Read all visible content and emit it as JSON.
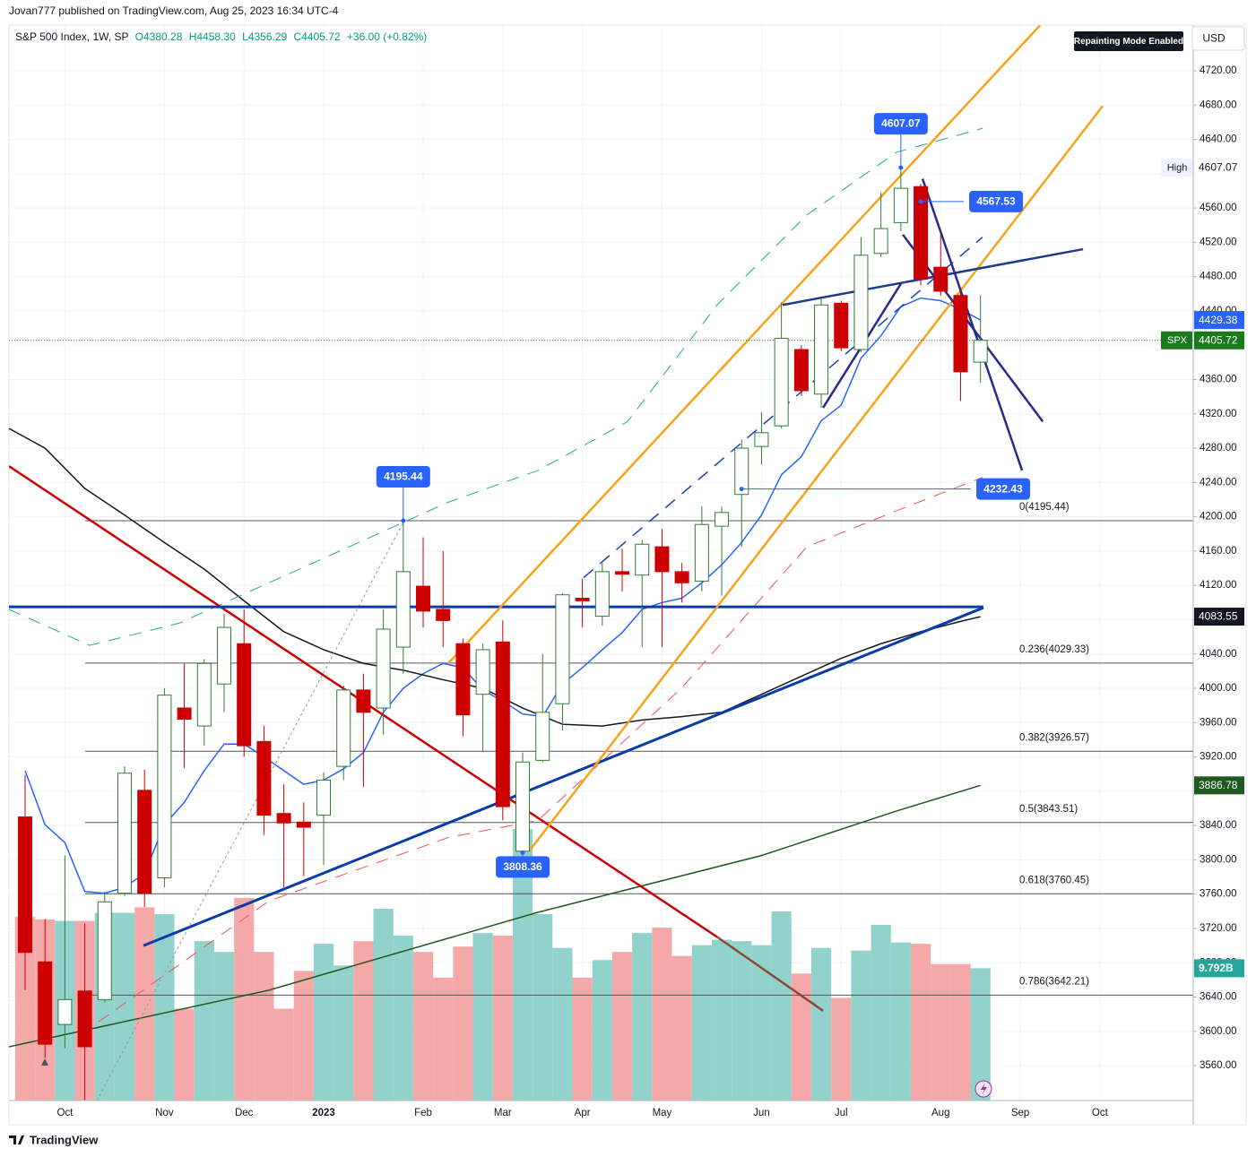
{
  "header": {
    "published": "Jovan777 published on TradingView.com, Aug 25, 2023 16:34 UTC-4",
    "symbol": "S&P 500 Index, 1W, SP",
    "open": "O4380.28",
    "high": "H4458.30",
    "low": "L4356.29",
    "close": "C4405.72",
    "change": "+36.00 (+0.82%)",
    "repainting": "Repainting Mode Enabled",
    "currency": "USD"
  },
  "footer": {
    "brand": "TradingView"
  },
  "chart_data": {
    "type": "candlestick",
    "xlim": [
      -0.81,
      58.69
    ],
    "ylim": [
      3519.3,
      4773.3
    ],
    "yticks": [
      {
        "value": 3560,
        "label": "3560.00"
      },
      {
        "value": 3600,
        "label": "3600.00"
      },
      {
        "value": 3640,
        "label": "3640.00"
      },
      {
        "value": 3680,
        "label": "3680.00"
      },
      {
        "value": 3720,
        "label": "3720.00"
      },
      {
        "value": 3760,
        "label": "3760.00"
      },
      {
        "value": 3800,
        "label": "3800.00"
      },
      {
        "value": 3840,
        "label": "3840.00"
      },
      {
        "value": 3880,
        "label": "3880.00"
      },
      {
        "value": 3920,
        "label": "3920.00"
      },
      {
        "value": 3960,
        "label": "3960.00"
      },
      {
        "value": 4000,
        "label": "4000.00"
      },
      {
        "value": 4040,
        "label": "4040.00"
      },
      {
        "value": 4080,
        "label": "4080.00"
      },
      {
        "value": 4120,
        "label": "4120.00"
      },
      {
        "value": 4160,
        "label": "4160.00"
      },
      {
        "value": 4200,
        "label": "4200.00"
      },
      {
        "value": 4240,
        "label": "4240.00"
      },
      {
        "value": 4280,
        "label": "4280.00"
      },
      {
        "value": 4320,
        "label": "4320.00"
      },
      {
        "value": 4360,
        "label": "4360.00"
      },
      {
        "value": 4400,
        "label": "4400.00"
      },
      {
        "value": 4440,
        "label": "4440.00"
      },
      {
        "value": 4480,
        "label": "4480.00"
      },
      {
        "value": 4520,
        "label": "4520.00"
      },
      {
        "value": 4560,
        "label": "4560.00"
      },
      {
        "value": 4600,
        "label": "4600.00"
      },
      {
        "value": 4640,
        "label": "4640.00"
      },
      {
        "value": 4680,
        "label": "4680.00"
      },
      {
        "value": 4720,
        "label": "4720.00"
      }
    ],
    "xticks": [
      {
        "value": 2,
        "label": "Oct"
      },
      {
        "value": 7,
        "label": "Nov"
      },
      {
        "value": 11,
        "label": "Dec"
      },
      {
        "value": 15,
        "label": "2023"
      },
      {
        "value": 20,
        "label": "Feb"
      },
      {
        "value": 24,
        "label": "Mar"
      },
      {
        "value": 28,
        "label": "Apr"
      },
      {
        "value": 32,
        "label": "May"
      },
      {
        "value": 37,
        "label": "Jun"
      },
      {
        "value": 41,
        "label": "Jul"
      },
      {
        "value": 46,
        "label": "Aug"
      },
      {
        "value": 50,
        "label": "Sep"
      },
      {
        "value": 54,
        "label": "Oct"
      }
    ],
    "grid": true,
    "up_color": "#ffffff",
    "up_stroke": "#2e7d32",
    "down_color": "#cc0000",
    "open": [
      3850,
      3681,
      3608,
      3647,
      3637,
      3761,
      3881,
      3779,
      3977,
      3956,
      4005,
      4052,
      3938,
      3854,
      3844,
      3852,
      3909,
      3998,
      3977,
      4048,
      4119,
      4092,
      4052,
      3993,
      4054,
      3810,
      3916,
      3982,
      4105,
      4084,
      4136,
      4132,
      4165,
      4136,
      4125,
      4189,
      4226,
      4282,
      4306,
      4395,
      4343,
      4449,
      4395,
      4507,
      4543,
      4585,
      4491,
      4458,
      4380.28
    ],
    "high": [
      3899,
      3731,
      3805,
      3726,
      3763,
      3909,
      3905,
      4000,
      4029,
      4034,
      4087,
      4092,
      3956,
      3888,
      3867,
      3902,
      4003,
      4017,
      4092,
      4195.44,
      4176,
      4160,
      4058,
      4052,
      4079,
      3925,
      4040,
      4111,
      4128,
      4146,
      4163,
      4173,
      4186,
      4146,
      4212,
      4212,
      4290,
      4322,
      4450,
      4400,
      4455,
      4452,
      4526,
      4578,
      4607.07,
      4588,
      4529,
      4463,
      4458.3
    ],
    "low": [
      3648,
      3569,
      3580,
      3519,
      3634,
      3758,
      3745,
      3768,
      3907,
      3933,
      3972,
      3920,
      3829,
      3768,
      3781,
      3794,
      3893,
      3885,
      3946,
      4017,
      4071,
      4048,
      3944,
      3927,
      3846,
      3808.36,
      3914,
      3951,
      4071,
      4073,
      4113,
      4048,
      4048,
      4100,
      4113,
      4108,
      4165,
      4261,
      4303,
      4341,
      4327,
      4393,
      4392,
      4503,
      4533,
      4470,
      4458,
      4335,
      4356.29
    ],
    "close": [
      3692,
      3585,
      3637,
      3582,
      3751,
      3901,
      3761,
      3992,
      3964,
      4029,
      4071,
      3933,
      3852,
      3843,
      3838,
      3893,
      3998,
      3972,
      4069,
      4136,
      4090,
      4079,
      3969,
      4045,
      3862,
      3914,
      3972,
      4109,
      4102,
      4136,
      4133,
      4168,
      4136,
      4123,
      4191,
      4205,
      4280,
      4298,
      4408,
      4347,
      4447,
      4397,
      4505,
      4536,
      4583,
      4477,
      4463,
      4369,
      4405.72
    ],
    "volume": {
      "up_color": "#92d2cc",
      "down_color": "#f5a8a8",
      "values": [
        13.6,
        13.4,
        13.3,
        13.3,
        13.9,
        13.9,
        14.3,
        13.8,
        6.8,
        11.8,
        11.0,
        15.0,
        11.0,
        6.8,
        9.6,
        11.6,
        10.0,
        11.8,
        14.2,
        12.2,
        11.0,
        9.1,
        11.4,
        12.4,
        12.2,
        20.1,
        13.8,
        11.3,
        9.1,
        10.4,
        11.0,
        12.4,
        12.8,
        10.7,
        11.5,
        11.9,
        11.8,
        11.5,
        14.0,
        9.4,
        11.3,
        7.6,
        11.1,
        13.0,
        11.7,
        11.6,
        10.1,
        10.1,
        9.792
      ],
      "last_label": "9.792B",
      "tag_color": "#26a69a"
    },
    "fib": {
      "x_start": 3.02,
      "color": "#555555",
      "prices": [
        4195.44,
        4029.33,
        3926.57,
        3843.51,
        3760.45,
        3642.21
      ],
      "labels": [
        "0(4195.44)",
        "0.236(4029.33)",
        "0.382(3926.57)",
        "0.5(3843.51)",
        "0.618(3760.45)",
        "0.786(3642.21)"
      ]
    },
    "drawings": [
      {
        "color": "#2962ff",
        "width": 1.5,
        "dash": "solid",
        "x": [
          0,
          1,
          2,
          3,
          4,
          5,
          6,
          7,
          8,
          9,
          10,
          11,
          12,
          13,
          14,
          15,
          16,
          17,
          18,
          19,
          20,
          21,
          22,
          23,
          24,
          25,
          26,
          27,
          28,
          29,
          30,
          31,
          32,
          33,
          34,
          35,
          36,
          37,
          38,
          39,
          40,
          41,
          42,
          43,
          44,
          45,
          46,
          47,
          48
        ],
        "y": [
          3904,
          3841,
          3820,
          3763,
          3761,
          3768,
          3784,
          3841,
          3867,
          3904,
          3935,
          3935,
          3920,
          3904,
          3888,
          3893,
          3906,
          3925,
          3972,
          4000,
          4017,
          4029,
          4024,
          3998,
          3985,
          3970,
          3967,
          4005,
          4024,
          4045,
          4065,
          4092,
          4100,
          4105,
          4123,
          4144,
          4170,
          4202,
          4249,
          4270,
          4312,
          4330,
          4385,
          4411,
          4445,
          4455,
          4452,
          4442,
          4429.38
        ]
      },
      {
        "color": "#131722",
        "width": 1.5,
        "dash": "solid",
        "x": [
          -0.81,
          1,
          3,
          5,
          7,
          9,
          11,
          13,
          15,
          17,
          19,
          21,
          23,
          25,
          27,
          29,
          31,
          33,
          35,
          37,
          39,
          41,
          43,
          45,
          47,
          48
        ],
        "y": [
          4303,
          4280,
          4233,
          4202,
          4170,
          4139,
          4102,
          4066,
          4045,
          4029,
          4021,
          4010,
          4000,
          3977,
          3958,
          3956,
          3963,
          3967,
          3972,
          3993,
          4014,
          4035,
          4052,
          4066,
          4078,
          4083.55
        ]
      },
      {
        "color": "#1e5a1e",
        "width": 1.5,
        "dash": "solid",
        "x": [
          -0.81,
          12.25,
          25.8,
          37,
          43.8,
          48
        ],
        "y": [
          3582,
          3648,
          3739,
          3805,
          3857,
          3886.78
        ]
      },
      {
        "color": "#26a69a",
        "width": 1,
        "dash": "dashed",
        "x": [
          -0.81,
          3.24,
          7.75,
          12.25,
          16.76,
          21.26,
          25.77,
          30.27,
          34.77,
          39.28,
          43.78,
          48.11
        ],
        "y": [
          4092,
          4050,
          4076,
          4123,
          4170,
          4217,
          4254,
          4311,
          4447,
          4552,
          4625,
          4653
        ]
      },
      {
        "color": "#ef5350",
        "width": 1,
        "dash": "dashed",
        "x": [
          3.69,
          12.25,
          21.26,
          25.77,
          32.97,
          39.28,
          43.78,
          48.11
        ],
        "y": [
          3611,
          3752,
          3826,
          3846,
          4000,
          4165,
          4207,
          4246
        ]
      },
      {
        "color": "#1e3fbf",
        "width": 1.5,
        "dash": "dashed",
        "x": [
          28.06,
          48.1
        ],
        "y": [
          4129,
          4526
        ]
      },
      {
        "color": "#999999",
        "width": 1,
        "dash": "dotted",
        "x": [
          3.6,
          19.01
        ],
        "y": [
          3519,
          4194
        ]
      },
      {
        "color": "#cc0000",
        "width": 2.5,
        "dash": "solid",
        "x": [
          -0.81,
          34.77
        ],
        "y": [
          4259,
          3710
        ]
      },
      {
        "color": "#8b4a3a",
        "width": 2.5,
        "dash": "solid",
        "x": [
          34.77,
          40.09
        ],
        "y": [
          3710,
          3624
        ]
      },
      {
        "color": "#0d3aa9",
        "width": 3,
        "dash": "solid",
        "x": [
          -0.81,
          48.15
        ],
        "y": [
          4095,
          4095
        ]
      },
      {
        "color": "#0d3aa9",
        "width": 3,
        "dash": "solid",
        "x": [
          5.95,
          48.15
        ],
        "y": [
          3700,
          4094
        ]
      },
      {
        "color": "#f7a21b",
        "width": 2.5,
        "dash": "solid",
        "x": [
          21.26,
          50.99
        ],
        "y": [
          4029,
          4773
        ]
      },
      {
        "color": "#f7a21b",
        "width": 2.5,
        "dash": "solid",
        "x": [
          25.32,
          54.14
        ],
        "y": [
          3810,
          4679
        ]
      },
      {
        "color": "#1e3a8a",
        "width": 2.5,
        "dash": "solid",
        "x": [
          38.06,
          53.15
        ],
        "y": [
          4447,
          4512
        ]
      },
      {
        "color": "#2a2a8a",
        "width": 2.5,
        "dash": "solid",
        "x": [
          44.1,
          51.13
        ],
        "y": [
          4529,
          4311
        ]
      },
      {
        "color": "#2a2a8a",
        "width": 2.5,
        "dash": "solid",
        "x": [
          45.09,
          50.09
        ],
        "y": [
          4594,
          4254
        ]
      },
      {
        "color": "#2a2a8a",
        "width": 2.5,
        "dash": "solid",
        "x": [
          40.09,
          44.01
        ],
        "y": [
          4327,
          4472
        ]
      }
    ],
    "callouts": [
      {
        "value": 4607.07,
        "x": 44,
        "side": "above",
        "color": "#2962ff"
      },
      {
        "value": 4567.53,
        "x": 45,
        "to": 47.16,
        "side": "right",
        "color": "#2962ff"
      },
      {
        "value": 4195.44,
        "x": 19,
        "side": "above",
        "color": "#2962ff"
      },
      {
        "value": 4232.43,
        "x": 36,
        "to": 47.52,
        "side": "right",
        "color": "#2962ff"
      },
      {
        "value": 3808.36,
        "x": 25,
        "side": "below",
        "color": "#2962ff"
      }
    ],
    "price_tags": [
      {
        "value": 4607.07,
        "bg": "#ffffff",
        "fg": "#131722",
        "name": "High"
      },
      {
        "value": 4429.38,
        "bg": "#2962ff",
        "fg": "#ffffff"
      },
      {
        "value": 4405.72,
        "bg": "#1b7a1b",
        "fg": "#ffffff",
        "name": "SPX",
        "line": true
      },
      {
        "value": 4083.55,
        "bg": "#131722",
        "fg": "#ffffff"
      },
      {
        "value": 3886.78,
        "bg": "#1e5a1e",
        "fg": "#ffffff"
      }
    ]
  }
}
